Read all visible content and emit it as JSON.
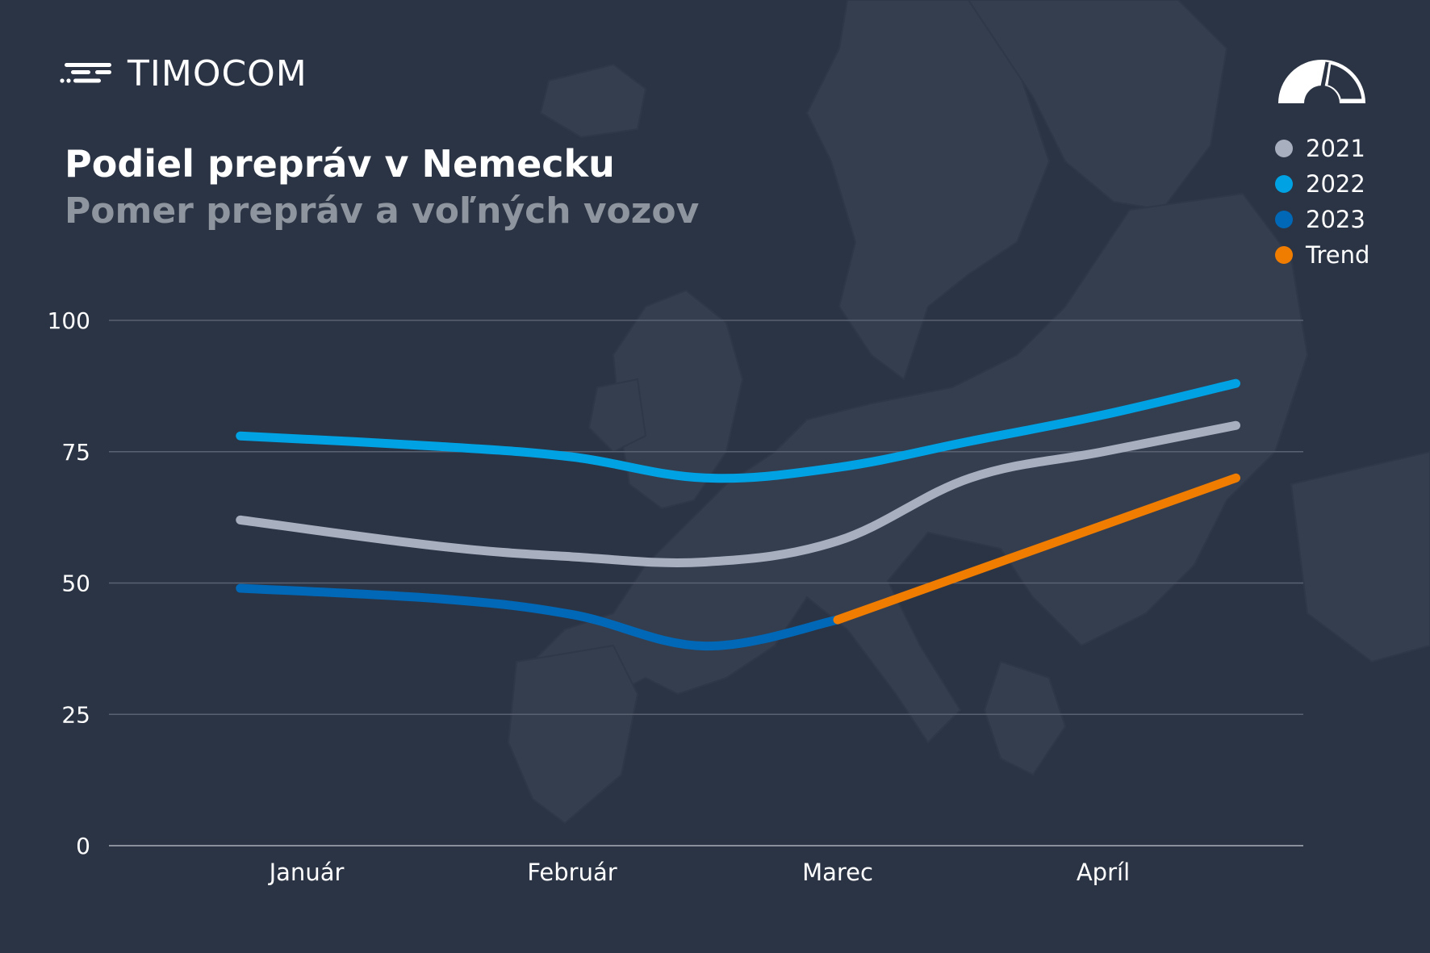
{
  "brand": {
    "name": "TIMOCOM",
    "logo_icon": "timocom-logo-icon"
  },
  "header": {
    "title": "Podiel prepráv v Nemecku",
    "subtitle": "Pomer prepráv a voľných vozov"
  },
  "gauge_icon": "speedometer-gauge-icon",
  "colors": {
    "background": "#2b3444",
    "map": "#343e4f",
    "grid": "#5a6272",
    "s2021": "#a8b0c0",
    "s2022": "#00a2e3",
    "s2023": "#0068b7",
    "trend": "#f07d00"
  },
  "legend": [
    {
      "label": "2021",
      "color": "#a8b0c0"
    },
    {
      "label": "2022",
      "color": "#00a2e3"
    },
    {
      "label": "2023",
      "color": "#0068b7"
    },
    {
      "label": "Trend",
      "color": "#f07d00"
    }
  ],
  "chart_data": {
    "type": "line",
    "title": "Podiel prepráv v Nemecku",
    "subtitle": "Pomer prepráv a voľných vozov",
    "categories": [
      "Január",
      "Február",
      "Marec",
      "Apríl"
    ],
    "ylim": [
      0,
      100
    ],
    "yticks": [
      0,
      25,
      50,
      75,
      100
    ],
    "grid": true,
    "legend_position": "top-right",
    "x_range": [
      0.75,
      4.5
    ],
    "series": [
      {
        "name": "2021",
        "color": "#a8b0c0",
        "x": [
          0.75,
          1.5,
          2.0,
          2.5,
          3.0,
          3.5,
          4.0,
          4.5
        ],
        "values": [
          62,
          57,
          55,
          54,
          58,
          70,
          75,
          80
        ]
      },
      {
        "name": "2022",
        "color": "#00a2e3",
        "x": [
          0.75,
          1.5,
          2.0,
          2.5,
          3.0,
          3.5,
          4.0,
          4.5
        ],
        "values": [
          78,
          76,
          74,
          70,
          72,
          77,
          82,
          88
        ]
      },
      {
        "name": "2023",
        "color": "#0068b7",
        "x": [
          0.75,
          1.5,
          2.0,
          2.5,
          3.0
        ],
        "values": [
          49,
          47,
          44,
          38,
          43
        ]
      },
      {
        "name": "Trend",
        "color": "#f07d00",
        "x": [
          3.0,
          4.5
        ],
        "values": [
          43,
          70
        ]
      }
    ]
  }
}
